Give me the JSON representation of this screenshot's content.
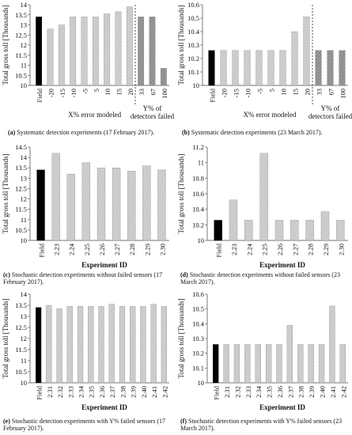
{
  "chart_data": [
    {
      "type": "bar",
      "id": "a",
      "caption_letter": "(a)",
      "caption_text": "Systematic detection experiments (17 February 2017).",
      "ylabel": "Total gross toll [Thousands]",
      "ylim": [
        10,
        14
      ],
      "ytick_step": 0.5,
      "ytick_decimals": 0,
      "yticks": [
        "10",
        "10.5",
        "11",
        "11.5",
        "12",
        "12.5",
        "13",
        "13.5",
        "14"
      ],
      "categories": [
        "Field",
        "-20",
        "-15",
        "-10",
        "-5",
        "5",
        "10",
        "15",
        "20",
        "33",
        "67",
        "100"
      ],
      "values": [
        13.4,
        12.8,
        13.0,
        13.4,
        13.4,
        13.4,
        13.55,
        13.65,
        13.9,
        13.4,
        13.4,
        10.85
      ],
      "bar_styles": [
        "field",
        "light",
        "light",
        "light",
        "light",
        "light",
        "light",
        "light",
        "light",
        "dark",
        "dark",
        "dark"
      ],
      "separator_after_index": 8,
      "group_labels": [
        "X% error modeled",
        "Y% of detectors failed"
      ],
      "xlabel": ""
    },
    {
      "type": "bar",
      "id": "b",
      "caption_letter": "(b)",
      "caption_text": "Systematic detection experiments (23 March 2017).",
      "ylabel": "Total gross toll [Thousands]",
      "ylim": [
        10,
        10.6
      ],
      "yticks": [
        "10",
        "10.1",
        "10.2",
        "10.3",
        "10.4",
        "10.5",
        "10.6"
      ],
      "categories": [
        "Field",
        "-20",
        "-15",
        "-10",
        "-5",
        "5",
        "10",
        "15",
        "20",
        "33",
        "67",
        "100"
      ],
      "values": [
        10.26,
        10.26,
        10.26,
        10.26,
        10.26,
        10.26,
        10.26,
        10.4,
        10.51,
        10.26,
        10.26,
        10.26
      ],
      "bar_styles": [
        "field",
        "light",
        "light",
        "light",
        "light",
        "light",
        "light",
        "light",
        "light",
        "dark",
        "dark",
        "dark"
      ],
      "separator_after_index": 8,
      "group_labels": [
        "X% error modeled",
        "Y% of detectors failed"
      ],
      "xlabel": ""
    },
    {
      "type": "bar",
      "id": "c",
      "caption_letter": "(c)",
      "caption_text": "Stochastic detection experiments without failed sensors (17 February 2017).",
      "ylabel": "Total gross toll [Thousands]",
      "ylim": [
        10,
        14.5
      ],
      "yticks": [
        "10",
        "10.5",
        "11",
        "11.5",
        "12",
        "12.5",
        "13",
        "13.5",
        "14",
        "14.5"
      ],
      "categories": [
        "Field",
        "2.23",
        "2.24",
        "2.25",
        "2.26",
        "2.27",
        "2.28",
        "2.29",
        "2.30"
      ],
      "values": [
        13.4,
        14.2,
        13.2,
        13.75,
        13.5,
        13.5,
        13.35,
        13.6,
        13.4
      ],
      "bar_styles": [
        "field",
        "light",
        "light",
        "light",
        "light",
        "light",
        "light",
        "light",
        "light"
      ],
      "separator_after_index": -1,
      "group_labels": [],
      "xlabel": "Experiment ID"
    },
    {
      "type": "bar",
      "id": "d",
      "caption_letter": "(d)",
      "caption_text": "Stochastic detection experiments without failed sensors (23 March 2017).",
      "ylabel": "Total gross toll [Thousands]",
      "ylim": [
        10,
        11.2
      ],
      "yticks": [
        "10",
        "10.2",
        "10.4",
        "10.6",
        "10.8",
        "11",
        "11.2"
      ],
      "categories": [
        "Field",
        "2.23",
        "2.24",
        "2.25",
        "2.26",
        "2.27",
        "2.28",
        "2.29",
        "2.30"
      ],
      "values": [
        10.26,
        10.52,
        10.26,
        11.12,
        10.26,
        10.26,
        10.26,
        10.37,
        10.26
      ],
      "bar_styles": [
        "field",
        "light",
        "light",
        "light",
        "light",
        "light",
        "light",
        "light",
        "light"
      ],
      "separator_after_index": -1,
      "group_labels": [],
      "xlabel": "Experiment ID"
    },
    {
      "type": "bar",
      "id": "e",
      "caption_letter": "(e)",
      "caption_text": "Stochastic detection experiments with Y% failed sensors (17 February 2017).",
      "ylabel": "Total gross toll [Thousands]",
      "ylim": [
        10,
        14
      ],
      "yticks": [
        "10",
        "10.5",
        "11",
        "11.5",
        "12",
        "12.5",
        "13",
        "13.5",
        "14"
      ],
      "categories": [
        "Field",
        "2.31",
        "2.32",
        "2.33",
        "2.34",
        "2.35",
        "2.36",
        "2.37",
        "2.38",
        "2.39",
        "2.40",
        "2.41",
        "2.42"
      ],
      "values": [
        13.4,
        13.5,
        13.35,
        13.45,
        13.45,
        13.45,
        13.45,
        13.55,
        13.45,
        13.45,
        13.45,
        13.55,
        13.45
      ],
      "bar_styles": [
        "field",
        "light",
        "light",
        "light",
        "light",
        "light",
        "light",
        "light",
        "light",
        "light",
        "light",
        "light",
        "light"
      ],
      "separator_after_index": -1,
      "group_labels": [],
      "xlabel": "Experiment ID"
    },
    {
      "type": "bar",
      "id": "f",
      "caption_letter": "(f)",
      "caption_text": "Stochastic detection experiments with Y% failed sensors (23 March 2017).",
      "ylabel": "Total gross toll [Thousands]",
      "ylim": [
        10,
        10.6
      ],
      "yticks": [
        "10",
        "10.1",
        "10.2",
        "10.3",
        "10.4",
        "10.5",
        "10.6"
      ],
      "categories": [
        "Field",
        "2.31",
        "2.32",
        "2.33",
        "2.34",
        "2.35",
        "2.36",
        "2.37",
        "2.38",
        "2.39",
        "2.40",
        "2.41",
        "2.42"
      ],
      "values": [
        10.26,
        10.26,
        10.26,
        10.26,
        10.26,
        10.26,
        10.26,
        10.39,
        10.26,
        10.26,
        10.26,
        10.52,
        10.26
      ],
      "bar_styles": [
        "field",
        "light",
        "light",
        "light",
        "light",
        "light",
        "light",
        "light",
        "light",
        "light",
        "light",
        "light",
        "light"
      ],
      "separator_after_index": -1,
      "group_labels": [],
      "xlabel": "Experiment ID"
    }
  ],
  "colors": {
    "field": "#000000",
    "light": "#c8c8c8",
    "dark": "#8a8a8a",
    "axis": "#444444",
    "text": "#111111"
  }
}
